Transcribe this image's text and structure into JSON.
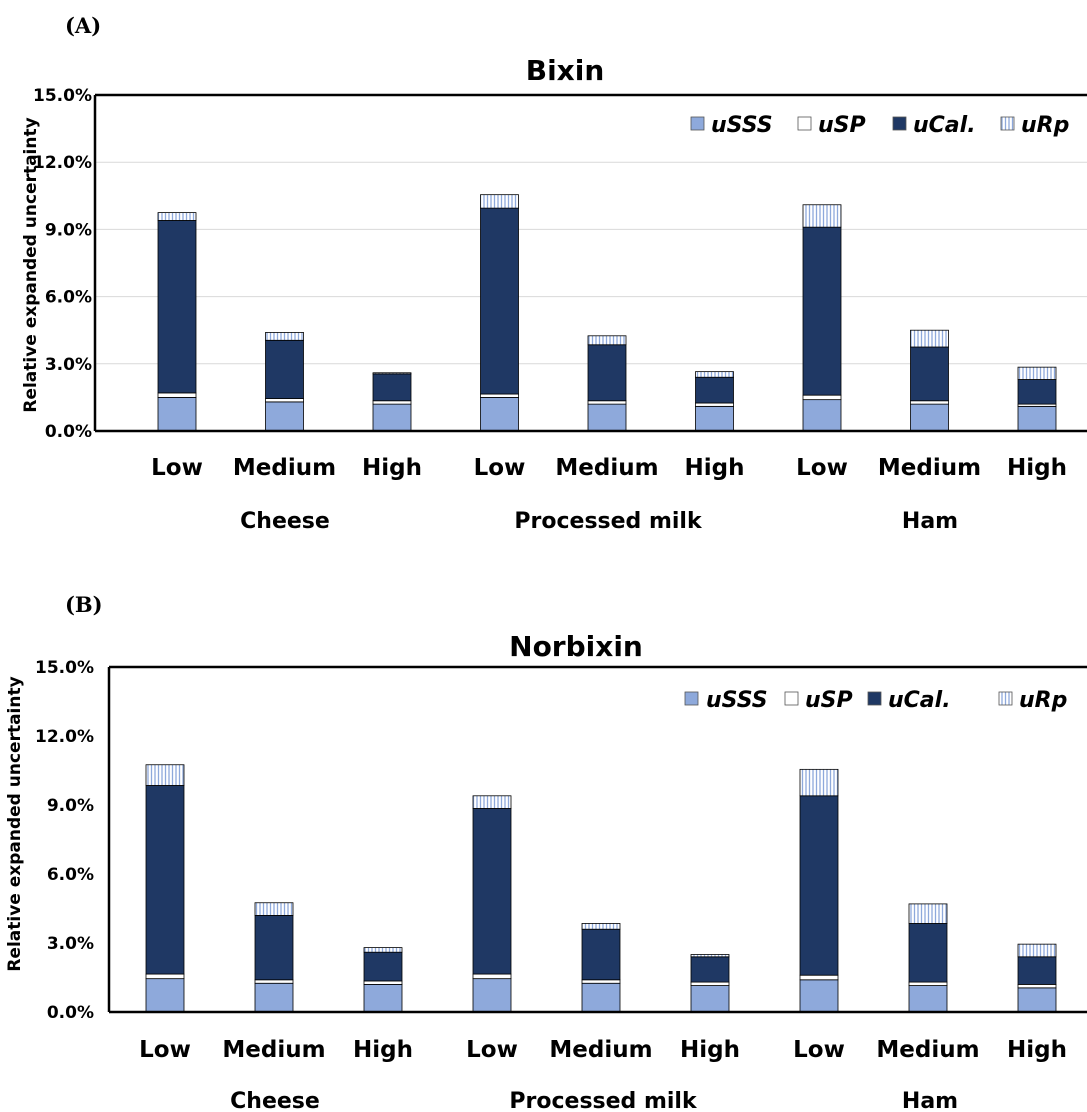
{
  "colors": {
    "uSSS": "#8EA9DB",
    "uSP": "#FFFFFF",
    "uCal": "#1F3864",
    "uRp_bg": "#FFFFFF",
    "uRp_line": "#8EA9DB",
    "grid": "#D9D9D9",
    "axis": "#000000",
    "bar_edge": "#000000"
  },
  "chart_data": [
    {
      "type": "bar",
      "stacked": true,
      "panel_label": "(A)",
      "title": "Bixin",
      "ylabel": "Relative expanded uncertainty",
      "ylim": [
        0,
        15
      ],
      "yticks": [
        "0.0%",
        "3.0%",
        "6.0%",
        "9.0%",
        "12.0%",
        "15.0%"
      ],
      "ytick_values": [
        0,
        3,
        6,
        9,
        12,
        15
      ],
      "grid": true,
      "legend_position": "top-right",
      "groups": [
        "Cheese",
        "Processed milk",
        "Ham"
      ],
      "categories": [
        "Low",
        "Medium",
        "High",
        "Low",
        "Medium",
        "High",
        "Low",
        "Medium",
        "High"
      ],
      "series": [
        {
          "name": "uSSS",
          "key": "uSSS",
          "values": [
            1.5,
            1.3,
            1.2,
            1.5,
            1.2,
            1.1,
            1.4,
            1.2,
            1.1
          ]
        },
        {
          "name": "uSP",
          "key": "uSP",
          "values": [
            0.2,
            0.15,
            0.15,
            0.15,
            0.15,
            0.15,
            0.2,
            0.15,
            0.1
          ]
        },
        {
          "name": "uCal.",
          "key": "uCal",
          "values": [
            7.7,
            2.6,
            1.2,
            8.3,
            2.5,
            1.15,
            7.5,
            2.4,
            1.1
          ]
        },
        {
          "name": "uRp",
          "key": "uRp",
          "values": [
            0.35,
            0.35,
            0.05,
            0.6,
            0.4,
            0.25,
            1.0,
            0.75,
            0.55
          ]
        }
      ]
    },
    {
      "type": "bar",
      "stacked": true,
      "panel_label": "(B)",
      "title": "Norbixin",
      "ylabel": "Relative expanded uncertainty",
      "ylim": [
        0,
        15
      ],
      "yticks": [
        "0.0%",
        "3.0%",
        "6.0%",
        "9.0%",
        "12.0%",
        "15.0%"
      ],
      "ytick_values": [
        0,
        3,
        6,
        9,
        12,
        15
      ],
      "grid": false,
      "legend_position": "top-right",
      "groups": [
        "Cheese",
        "Processed milk",
        "Ham"
      ],
      "categories": [
        "Low",
        "Medium",
        "High",
        "Low",
        "Medium",
        "High",
        "Low",
        "Medium",
        "High"
      ],
      "series": [
        {
          "name": "uSSS",
          "key": "uSSS",
          "values": [
            1.45,
            1.25,
            1.2,
            1.45,
            1.25,
            1.15,
            1.4,
            1.15,
            1.05
          ]
        },
        {
          "name": "uSP",
          "key": "uSP",
          "values": [
            0.2,
            0.15,
            0.15,
            0.2,
            0.15,
            0.15,
            0.2,
            0.15,
            0.15
          ]
        },
        {
          "name": "uCal.",
          "key": "uCal",
          "values": [
            8.2,
            2.8,
            1.25,
            7.2,
            2.2,
            1.1,
            7.8,
            2.55,
            1.2
          ]
        },
        {
          "name": "uRp",
          "key": "uRp",
          "values": [
            0.9,
            0.55,
            0.2,
            0.55,
            0.25,
            0.1,
            1.15,
            0.85,
            0.55
          ]
        }
      ]
    }
  ]
}
